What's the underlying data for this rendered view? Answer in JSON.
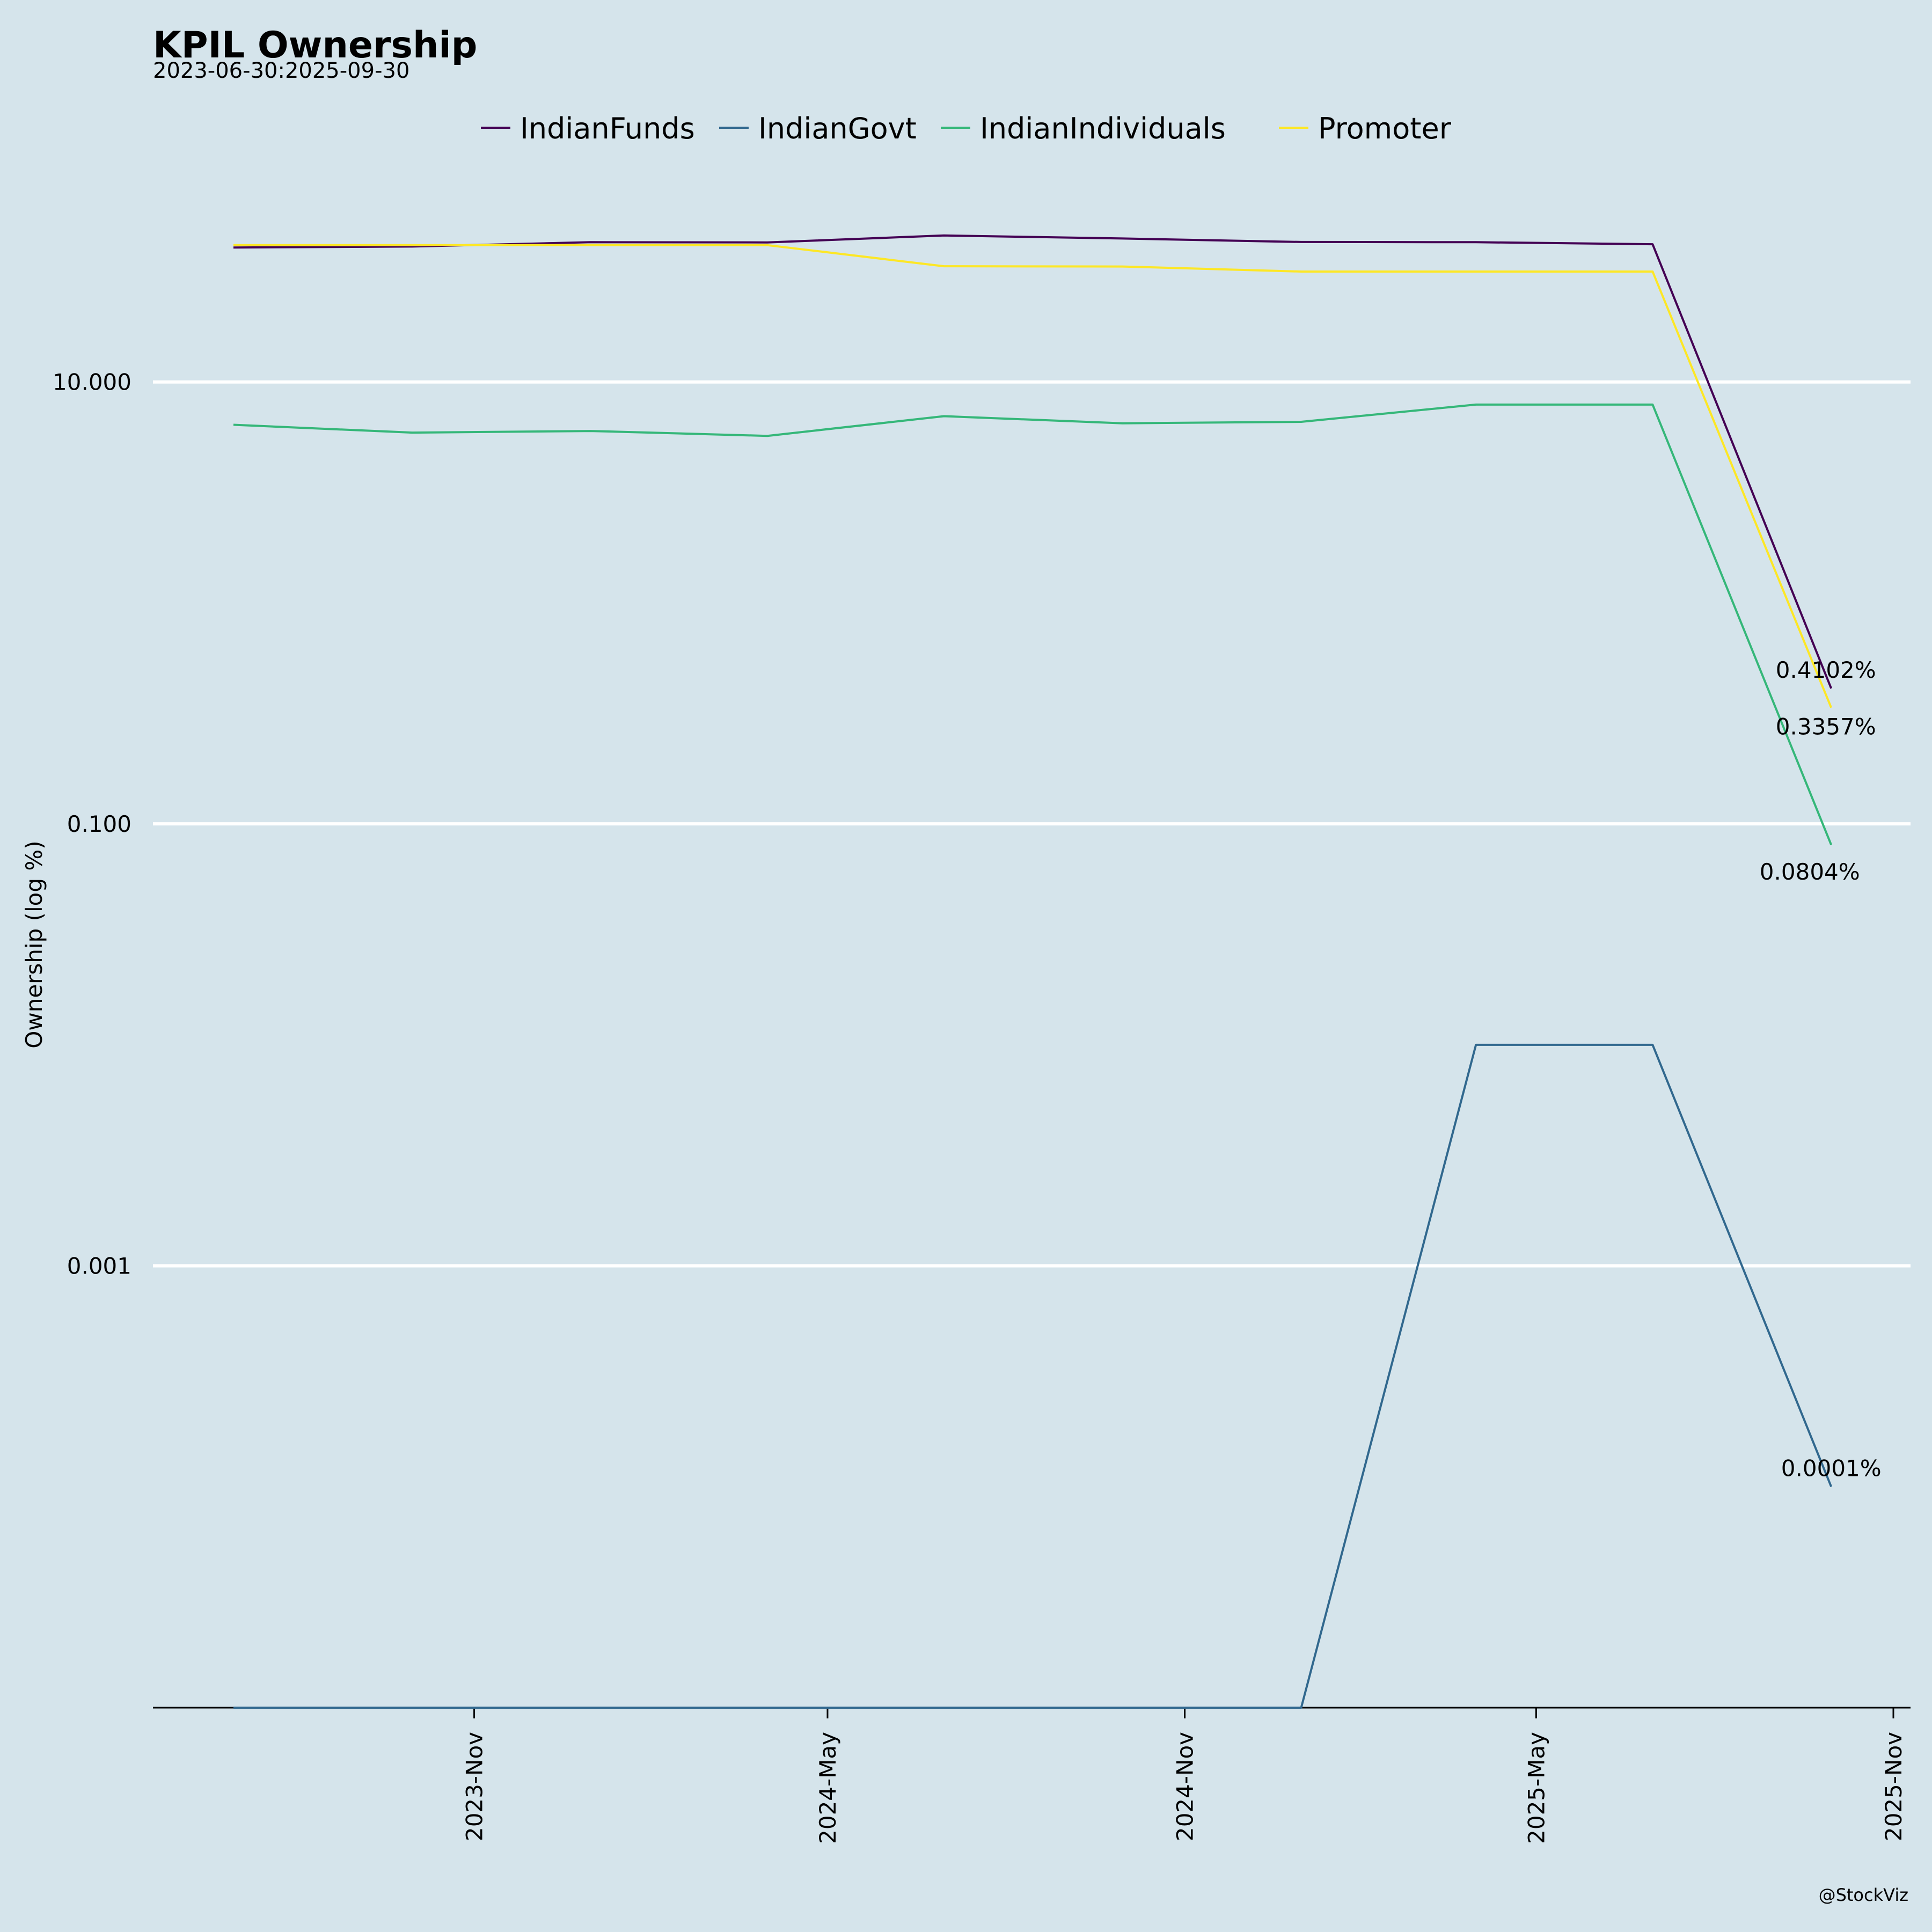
{
  "chart_data": {
    "type": "line",
    "title": "KPIL Ownership",
    "subtitle": "2023-06-30:2025-09-30",
    "ylabel": "Ownership (log %)",
    "xlabel": "",
    "y_scale": "log",
    "y_ticks": [
      10,
      0.1,
      0.001
    ],
    "y_tick_labels": [
      "10.000",
      "0.100",
      "0.001"
    ],
    "ylim": [
      1e-05,
      100
    ],
    "xlim": [
      "2023-06-30",
      "2025-11-01"
    ],
    "x_ticks": [
      "2023-11-01",
      "2024-05-01",
      "2024-11-01",
      "2025-05-01",
      "2025-11-01"
    ],
    "x_tick_labels": [
      "2023-Nov",
      "2024-May",
      "2024-Nov",
      "2025-May",
      "2025-Nov"
    ],
    "x": [
      "2023-06-30",
      "2023-09-30",
      "2023-12-31",
      "2024-03-31",
      "2024-06-30",
      "2024-09-30",
      "2024-12-31",
      "2025-03-31",
      "2025-06-30",
      "2025-09-30"
    ],
    "series": [
      {
        "name": "IndianFunds",
        "color": "#440154",
        "values": [
          40.6,
          41.0,
          42.9,
          42.8,
          46.0,
          44.6,
          43.0,
          42.9,
          42.0,
          0.4102
        ],
        "end_label": "0.4102%"
      },
      {
        "name": "IndianGovt",
        "color": "#31688e",
        "values": [
          1e-05,
          1e-05,
          1e-05,
          1e-05,
          1e-05,
          1e-05,
          1e-05,
          0.01,
          0.01,
          0.0001
        ],
        "end_label": "0.0001%"
      },
      {
        "name": "IndianIndividuals",
        "color": "#35b779",
        "values": [
          6.4,
          5.9,
          6.0,
          5.7,
          7.0,
          6.5,
          6.6,
          7.9,
          7.9,
          0.0804
        ],
        "end_label": "0.0804%"
      },
      {
        "name": "Promoter",
        "color": "#fde725",
        "values": [
          41.6,
          41.6,
          41.6,
          41.6,
          33.4,
          33.3,
          31.6,
          31.6,
          31.6,
          0.3357
        ],
        "end_label": "0.3357%"
      }
    ],
    "grid": "horizontal",
    "legend": "top-center",
    "credit": "@StockViz"
  }
}
